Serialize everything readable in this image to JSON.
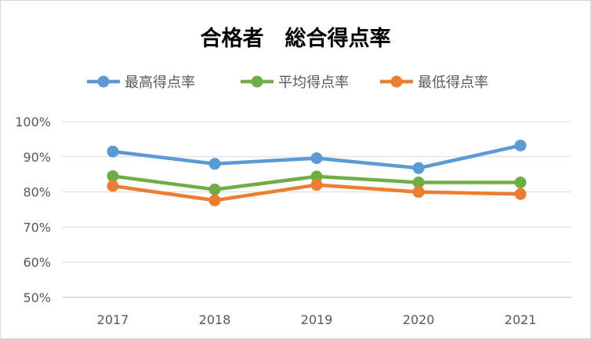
{
  "chart_data": {
    "type": "line",
    "title": "合格者　総合得点率",
    "categories": [
      "2017",
      "2018",
      "2019",
      "2020",
      "2021"
    ],
    "y_ticks": [
      "50%",
      "60%",
      "70%",
      "80%",
      "90%",
      "100%"
    ],
    "ylim": [
      50,
      100
    ],
    "grid": true,
    "legend_position": "top",
    "series": [
      {
        "name": "最高得点率",
        "color": "#5b9bd5",
        "values": [
          91.5,
          88.0,
          89.6,
          86.8,
          93.2
        ]
      },
      {
        "name": "平均得点率",
        "color": "#70ad47",
        "values": [
          84.5,
          80.7,
          84.4,
          82.7,
          82.7
        ]
      },
      {
        "name": "最低得点率",
        "color": "#ed7d31",
        "values": [
          81.7,
          77.6,
          82.0,
          80.0,
          79.4
        ]
      }
    ]
  }
}
